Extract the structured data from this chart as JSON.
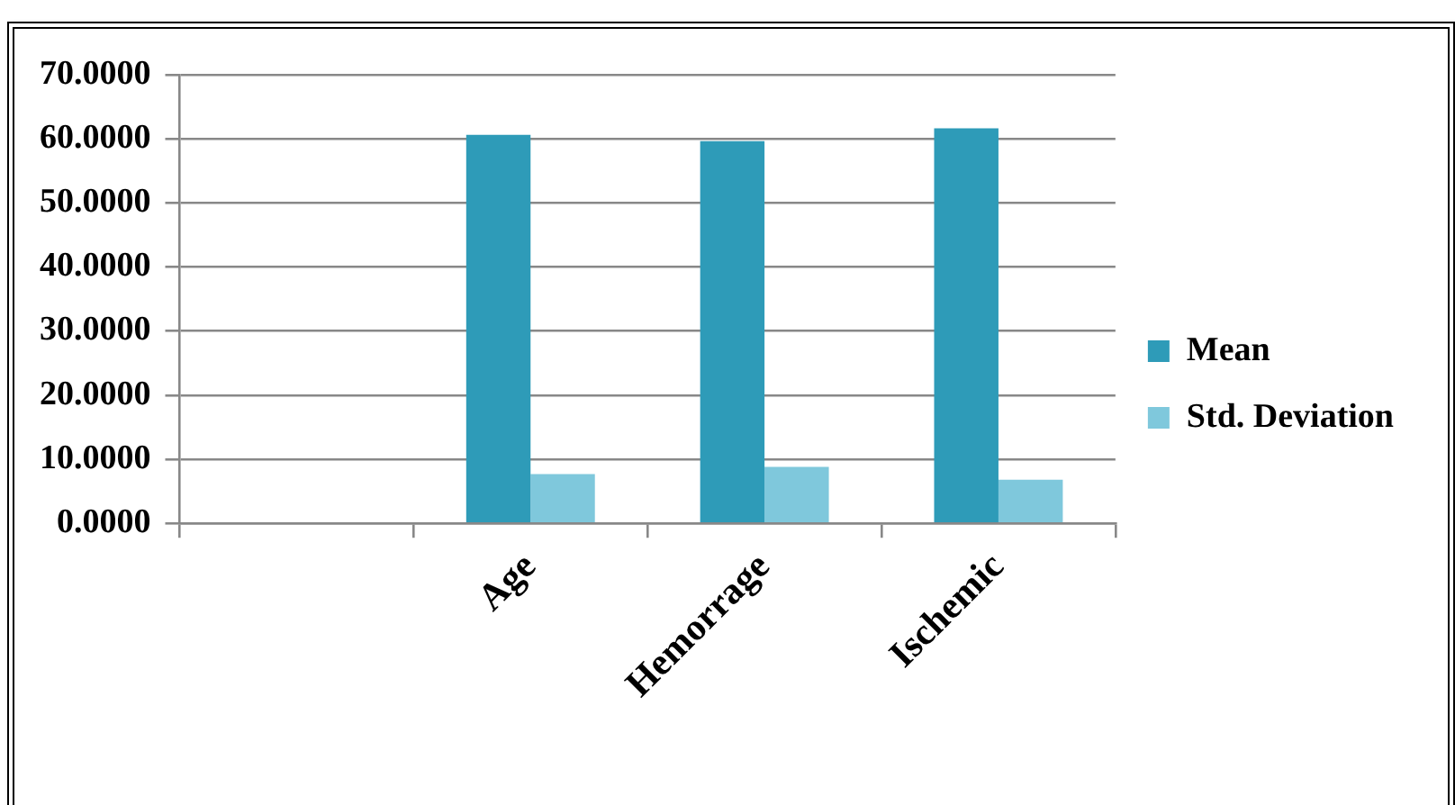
{
  "chart_data": {
    "type": "bar",
    "categories": [
      null,
      "Age",
      "Hemorrage",
      "Ischemic"
    ],
    "series": [
      {
        "name": "Mean",
        "color": "#2e9bb8",
        "values": [
          null,
          60.6,
          59.6,
          61.6
        ]
      },
      {
        "name": "Std. Deviation",
        "color": "#7fc8dc",
        "values": [
          null,
          7.7,
          8.8,
          6.8
        ]
      }
    ],
    "ylim": [
      0,
      70
    ],
    "yticks": [
      {
        "value": 0,
        "label": "0.0000"
      },
      {
        "value": 10,
        "label": "10.0000"
      },
      {
        "value": 20,
        "label": "20.0000"
      },
      {
        "value": 30,
        "label": "30.0000"
      },
      {
        "value": 40,
        "label": "40.0000"
      },
      {
        "value": 50,
        "label": "50.0000"
      },
      {
        "value": 60,
        "label": "60.0000"
      },
      {
        "value": 70,
        "label": "70.0000"
      }
    ],
    "grid": "y",
    "legend": "right"
  }
}
